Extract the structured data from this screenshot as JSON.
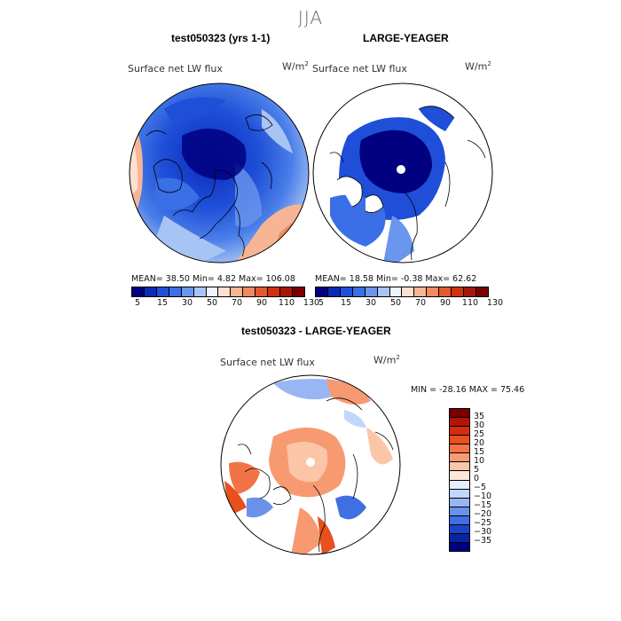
{
  "season": "JJA",
  "panels": {
    "left": {
      "title": "test050323 (yrs 1-1)",
      "variable": "Surface net LW flux",
      "unit": "W/m",
      "unit_exp": "2",
      "stats": "MEAN=   38.50   Min=    4.82   Max=  106.08"
    },
    "right": {
      "title": "LARGE-YEAGER",
      "variable": "Surface net LW flux",
      "unit": "W/m",
      "unit_exp": "2",
      "stats": "MEAN=   18.58   Min=   -0.38   Max=   62.62"
    },
    "diff": {
      "title": "test050323 - LARGE-YEAGER",
      "variable": "Surface net LW flux",
      "unit": "W/m",
      "unit_exp": "2",
      "stats": "MIN = -28.16  MAX =  75.46"
    }
  },
  "colorbar_abs": {
    "colors": [
      "#000080",
      "#0a2ab8",
      "#1f4fd8",
      "#3a6fe8",
      "#6a96ee",
      "#a8c4f4",
      "#eef4ff",
      "#fde0cf",
      "#f7b595",
      "#f08a62",
      "#e4592f",
      "#cf3210",
      "#a8160a",
      "#7a0000"
    ],
    "labels": [
      "5",
      "15",
      "30",
      "50",
      "70",
      "90",
      "110",
      "130"
    ]
  },
  "colorbar_diff": {
    "colors": [
      "#7a0000",
      "#b01508",
      "#d42d0f",
      "#e8501e",
      "#f27345",
      "#f79a72",
      "#fbc5a8",
      "#fde8da",
      "#e6eeff",
      "#c2d5fb",
      "#97b6f3",
      "#6a92ea",
      "#3f6fe0",
      "#1a44c8",
      "#0a24a0",
      "#000080"
    ],
    "labels": [
      "35",
      "30",
      "25",
      "20",
      "15",
      "10",
      "5",
      "0",
      "−5",
      "−10",
      "−15",
      "−20",
      "−25",
      "−30",
      "−35"
    ]
  }
}
